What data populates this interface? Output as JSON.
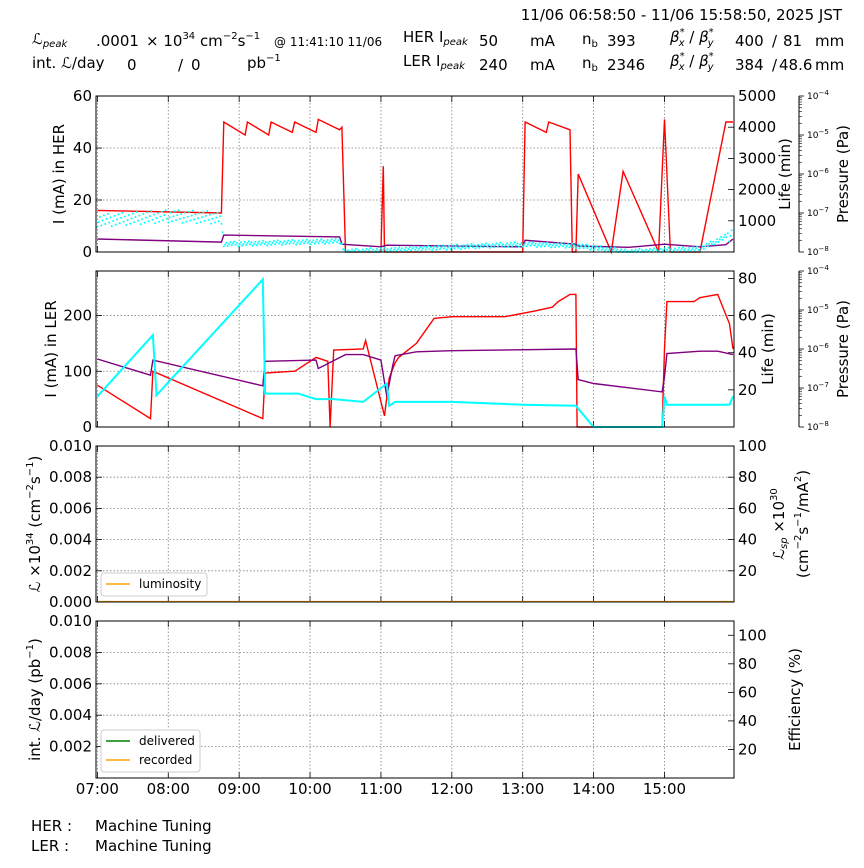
{
  "header": {
    "time_range": "11/06 06:58:50 - 11/06 15:58:50, 2025 JST",
    "lpeak_label": "ℒ",
    "lpeak_sub": "peak",
    "lpeak_value": ".0001",
    "lpeak_unit_pre": "× 10",
    "lpeak_unit_exp": "34",
    "lpeak_unit_post": " cm",
    "lpeak_unit_exp2": "−2",
    "lpeak_unit_s": "s",
    "lpeak_unit_exp3": "−1",
    "lpeak_at": "@ 11:41:10 11/06",
    "intl_label": "int. ℒ/day",
    "intl_delivered": "0",
    "intl_slash": "/",
    "intl_recorded": "0",
    "intl_unit": "pb",
    "intl_unit_exp": "−1",
    "her_label": "HER I",
    "her_sub": "peak",
    "her_value": "50",
    "her_unit": "mA",
    "her_nb_label": "n",
    "her_nb_sub": "b",
    "her_nb": "393",
    "ler_label": "LER I",
    "ler_sub": "peak",
    "ler_value": "240",
    "ler_unit": "mA",
    "ler_nb_label": "n",
    "ler_nb_sub": "b",
    "ler_nb": "2346",
    "beta_label": "β",
    "beta_sup": "*",
    "beta_x": "x",
    "beta_y": "y",
    "beta_slash": " / ",
    "her_beta_x": "400",
    "her_beta_y": "81",
    "her_beta_unit": "mm",
    "ler_beta_x": "384",
    "ler_beta_y": "48.6",
    "ler_beta_unit": "mm"
  },
  "footer": {
    "her_status_label": "HER :",
    "her_status": "Machine Tuning",
    "ler_status_label": "LER :",
    "ler_status": "Machine Tuning"
  },
  "colors": {
    "current": "#ff0000",
    "lifetime": "#00ffff",
    "pressure": "#800080",
    "luminosity": "#ffa500",
    "delivered": "#008000",
    "recorded": "#ffa500"
  },
  "chart_data": [
    {
      "type": "line",
      "panel": "HER",
      "x_ticks": [
        "07:00",
        "08:00",
        "09:00",
        "10:00",
        "11:00",
        "12:00",
        "13:00",
        "14:00",
        "15:00"
      ],
      "x_range": [
        "06:58:50",
        "15:58:50"
      ],
      "ylabel": "I (mA) in HER",
      "ylim": [
        0,
        60
      ],
      "yticks": [
        "0",
        "20",
        "40",
        "60"
      ],
      "y2label": "Life (min)",
      "y2lim": [
        0,
        5000
      ],
      "y2ticks": [
        "1000",
        "2000",
        "3000",
        "4000",
        "5000"
      ],
      "y3label": "Pressure (Pa)",
      "y3lim_log10": [
        -8,
        -4
      ],
      "y3ticks": [
        "10",
        "10",
        "10",
        "10",
        "10"
      ],
      "y3ticks_exp": [
        "−8",
        "−7",
        "−6",
        "−5",
        "−4"
      ],
      "series": [
        {
          "color": "#ff0000",
          "x": [
            "07:00",
            "08:45",
            "08:47",
            "09:05",
            "09:07",
            "09:25",
            "09:27",
            "09:45",
            "09:47",
            "10:05",
            "10:07",
            "10:25",
            "10:27",
            "10:30",
            "11:00",
            "11:02",
            "11:03",
            "11:04",
            "11:05",
            "13:00",
            "13:02",
            "13:20",
            "13:22",
            "13:40",
            "13:42",
            "13:45",
            "13:47",
            "14:15",
            "14:25",
            "14:55",
            "15:00",
            "15:05",
            "15:30",
            "15:52",
            "15:58"
          ],
          "y": [
            16,
            15,
            50,
            45,
            50,
            45,
            50,
            46,
            50,
            46,
            51,
            47,
            48,
            0,
            0,
            33,
            0,
            0,
            0,
            0,
            50,
            46,
            50,
            47,
            0,
            0,
            30,
            0,
            31,
            0,
            51,
            0,
            0,
            50,
            50
          ]
        },
        {
          "color": "#800080",
          "x": [
            "07:00",
            "08:45",
            "08:47",
            "10:25",
            "10:27",
            "11:00",
            "11:05",
            "13:00",
            "13:02",
            "13:45",
            "13:47",
            "14:30",
            "15:00",
            "15:30",
            "15:52",
            "15:58"
          ],
          "y": [
            5,
            3.8,
            6.5,
            5.8,
            3,
            2,
            2.6,
            2,
            4.5,
            3,
            2.3,
            1.8,
            3,
            2,
            2.8,
            5
          ]
        }
      ],
      "scatter": {
        "color": "#00ffff",
        "x": [
          "07:00",
          "08:00",
          "08:45",
          "08:47",
          "10:25",
          "10:30",
          "13:00",
          "13:45",
          "14:30",
          "15:30",
          "15:58"
        ],
        "y_life": [
          1000,
          1150,
          1100,
          250,
          350,
          10,
          250,
          200,
          10,
          100,
          600
        ]
      }
    },
    {
      "type": "line",
      "panel": "LER",
      "x_ticks": [
        "07:00",
        "08:00",
        "09:00",
        "10:00",
        "11:00",
        "12:00",
        "13:00",
        "14:00",
        "15:00"
      ],
      "ylabel": "I (mA) in LER",
      "ylim": [
        0,
        280
      ],
      "yticks": [
        "0",
        "100",
        "200"
      ],
      "y2label": "Life (min)",
      "y2lim": [
        0,
        84
      ],
      "y2ticks": [
        "20",
        "40",
        "60",
        "80"
      ],
      "y3label": "Pressure (Pa)",
      "y3lim_log10": [
        -8,
        -4
      ],
      "y3ticks": [
        "10",
        "10",
        "10",
        "10",
        "10"
      ],
      "y3ticks_exp": [
        "−8",
        "−7",
        "−6",
        "−5",
        "−4"
      ],
      "series": [
        {
          "color": "#ff0000",
          "x": [
            "07:00",
            "07:45",
            "07:47",
            "09:20",
            "09:22",
            "09:45",
            "09:47",
            "10:05",
            "10:15",
            "10:17",
            "10:20",
            "10:45",
            "10:47",
            "11:03",
            "11:07",
            "11:12",
            "11:15",
            "11:30",
            "11:40",
            "11:45",
            "12:00",
            "12:45",
            "13:10",
            "13:25",
            "13:30",
            "13:40",
            "13:45",
            "13:46",
            "14:30",
            "14:58",
            "15:00",
            "15:02",
            "15:25",
            "15:30",
            "15:45",
            "15:55",
            "15:58"
          ],
          "y": [
            75,
            15,
            100,
            15,
            97,
            100,
            100,
            125,
            118,
            0,
            138,
            140,
            155,
            20,
            88,
            115,
            125,
            150,
            180,
            195,
            198,
            198,
            208,
            215,
            225,
            238,
            238,
            0,
            0,
            0,
            140,
            225,
            225,
            232,
            238,
            185,
            140
          ]
        },
        {
          "color": "#800080",
          "x": [
            "07:00",
            "07:45",
            "07:47",
            "09:20",
            "09:22",
            "10:05",
            "10:07",
            "10:30",
            "10:45",
            "11:00",
            "11:05",
            "11:10",
            "11:12",
            "11:30",
            "12:00",
            "13:45",
            "13:47",
            "14:00",
            "14:58",
            "15:00",
            "15:02",
            "15:30",
            "15:45",
            "15:58"
          ],
          "y": [
            122,
            93,
            120,
            74,
            118,
            120,
            105,
            130,
            130,
            120,
            55,
            110,
            128,
            135,
            137,
            140,
            85,
            78,
            63,
            90,
            132,
            136,
            136,
            130
          ]
        },
        {
          "color": "#00ffff",
          "x": [
            "07:00",
            "07:47",
            "07:50",
            "09:20",
            "09:22",
            "09:47",
            "09:50",
            "10:05",
            "10:20",
            "10:45",
            "11:05",
            "11:07",
            "11:12",
            "12:00",
            "13:00",
            "13:45",
            "14:00",
            "14:58",
            "15:00",
            "15:02",
            "15:30",
            "15:55",
            "15:58"
          ],
          "y": [
            55,
            165,
            57,
            265,
            60,
            60,
            60,
            50,
            50,
            45,
            78,
            38,
            45,
            45,
            40,
            38,
            0,
            0,
            55,
            40,
            40,
            40,
            55
          ]
        }
      ]
    },
    {
      "type": "line",
      "panel": "luminosity",
      "ylabel": "ℒ ×10^34 (cm^−2 s^−1)",
      "ylabel_pre": "ℒ ×10",
      "ylabel_exp": "34",
      "ylabel_mid": " (cm",
      "ylabel_exp2": "−2",
      "ylabel_s": "s",
      "ylabel_exp3": "−1",
      "ylabel_post": ")",
      "ylim": [
        0,
        0.01
      ],
      "yticks": [
        "0.000",
        "0.002",
        "0.004",
        "0.006",
        "0.008",
        "0.010"
      ],
      "y2label": "ℒsp ×10^30",
      "y2label_pre": "ℒ",
      "y2label_sub": "sp",
      "y2label_mid": " ×10",
      "y2label_exp": "30",
      "y2label_line2": "(cm",
      "y2label_line2_exp": "−2",
      "y2label_line2_s": "s",
      "y2label_line2_exp2": "−1",
      "y2label_line2_post": "/mA",
      "y2label_line2_exp3": "2",
      "y2label_line2_close": ")",
      "y2lim": [
        0,
        100
      ],
      "y2ticks": [
        "20",
        "40",
        "60",
        "80",
        "100"
      ],
      "legend": [
        "luminosity"
      ],
      "legend_position": "lower-left",
      "series": [
        {
          "name": "luminosity",
          "color": "#ffa500",
          "x": [
            "07:00",
            "15:58"
          ],
          "y": [
            0,
            0
          ]
        }
      ]
    },
    {
      "type": "line",
      "panel": "integrated",
      "ylabel_pre": "int. ℒ/day (pb",
      "ylabel_exp": "−1",
      "ylabel_post": ")",
      "ylim": [
        0,
        0.01
      ],
      "yticks": [
        "0.002",
        "0.004",
        "0.006",
        "0.008",
        "0.010"
      ],
      "y2label": "Efficiency (%)",
      "y2lim": [
        0,
        110
      ],
      "y2ticks": [
        "20",
        "40",
        "60",
        "80",
        "100"
      ],
      "legend": [
        "delivered",
        "recorded"
      ],
      "legend_position": "lower-left",
      "x_ticks": [
        "07:00",
        "08:00",
        "09:00",
        "10:00",
        "11:00",
        "12:00",
        "13:00",
        "14:00",
        "15:00"
      ],
      "series": [
        {
          "name": "delivered",
          "color": "#008000",
          "x": [],
          "y": []
        },
        {
          "name": "recorded",
          "color": "#ffa500",
          "x": [],
          "y": []
        }
      ]
    }
  ]
}
